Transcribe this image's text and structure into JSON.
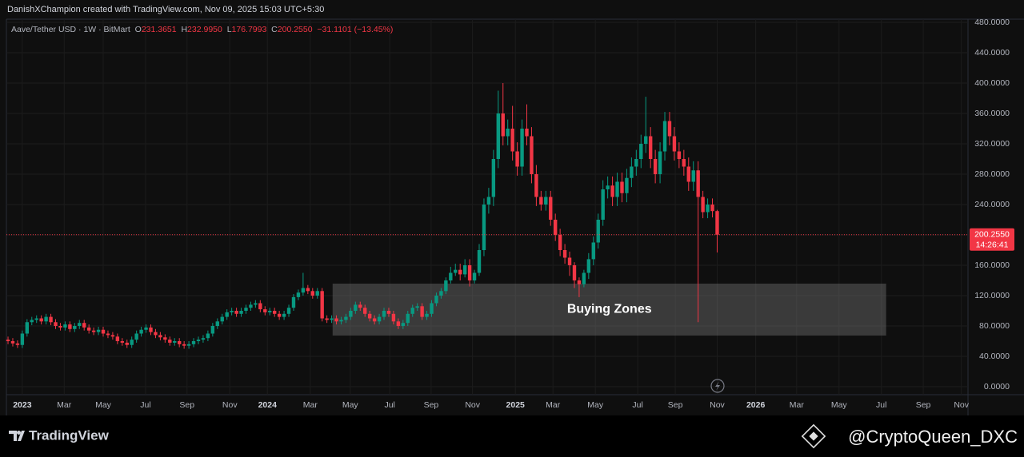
{
  "header": {
    "credit": "DanishXChampion created with TradingView.com, Nov 09, 2025 15:03 UTC+5:30"
  },
  "chart_data": {
    "type": "candlestick",
    "symbol": "Aave/Tether USD · 1W · BitMart",
    "ohlc_legend": {
      "o_label": "O",
      "o": "231.3651",
      "h_label": "H",
      "h": "232.9950",
      "l_label": "L",
      "l": "176.7993",
      "c_label": "C",
      "c": "200.2550",
      "change": "−31.1101 (−13.45%)"
    },
    "up_color": "#089981",
    "down_color": "#f23645",
    "candles": [
      [
        62,
        66,
        56,
        60
      ],
      [
        60,
        64,
        53,
        57
      ],
      [
        57,
        61,
        51,
        55
      ],
      [
        55,
        74,
        51,
        70
      ],
      [
        70,
        89,
        66,
        85
      ],
      [
        85,
        92,
        81,
        88
      ],
      [
        88,
        94,
        84,
        90
      ],
      [
        90,
        94,
        82,
        86
      ],
      [
        86,
        96,
        82,
        92
      ],
      [
        92,
        96,
        81,
        85
      ],
      [
        85,
        89,
        76,
        80
      ],
      [
        80,
        84,
        74,
        78
      ],
      [
        78,
        86,
        74,
        82
      ],
      [
        82,
        86,
        72,
        76
      ],
      [
        76,
        84,
        72,
        80
      ],
      [
        80,
        88,
        76,
        84
      ],
      [
        84,
        88,
        74,
        78
      ],
      [
        78,
        82,
        70,
        74
      ],
      [
        74,
        78,
        68,
        72
      ],
      [
        72,
        79,
        68,
        75
      ],
      [
        75,
        79,
        66,
        70
      ],
      [
        70,
        74,
        64,
        68
      ],
      [
        68,
        72,
        62,
        66
      ],
      [
        66,
        70,
        56,
        60
      ],
      [
        60,
        64,
        54,
        58
      ],
      [
        58,
        62,
        51,
        55
      ],
      [
        55,
        66,
        51,
        62
      ],
      [
        62,
        74,
        58,
        70
      ],
      [
        70,
        79,
        66,
        75
      ],
      [
        75,
        82,
        71,
        78
      ],
      [
        78,
        82,
        68,
        72
      ],
      [
        72,
        76,
        64,
        68
      ],
      [
        68,
        72,
        61,
        65
      ],
      [
        65,
        69,
        58,
        62
      ],
      [
        62,
        66,
        54,
        58
      ],
      [
        58,
        64,
        54,
        60
      ],
      [
        60,
        64,
        52,
        56
      ],
      [
        56,
        60,
        50,
        54
      ],
      [
        54,
        60,
        50,
        56
      ],
      [
        56,
        64,
        52,
        60
      ],
      [
        60,
        66,
        56,
        62
      ],
      [
        62,
        68,
        58,
        64
      ],
      [
        64,
        74,
        60,
        70
      ],
      [
        70,
        84,
        66,
        80
      ],
      [
        80,
        90,
        76,
        86
      ],
      [
        86,
        96,
        82,
        92
      ],
      [
        92,
        102,
        88,
        98
      ],
      [
        98,
        104,
        94,
        100
      ],
      [
        100,
        104,
        92,
        96
      ],
      [
        96,
        104,
        92,
        100
      ],
      [
        100,
        108,
        96,
        104
      ],
      [
        104,
        112,
        100,
        108
      ],
      [
        108,
        114,
        104,
        110
      ],
      [
        110,
        114,
        98,
        102
      ],
      [
        102,
        106,
        94,
        98
      ],
      [
        98,
        104,
        94,
        100
      ],
      [
        100,
        104,
        92,
        96
      ],
      [
        96,
        100,
        88,
        92
      ],
      [
        92,
        100,
        88,
        96
      ],
      [
        96,
        108,
        92,
        104
      ],
      [
        104,
        122,
        100,
        118
      ],
      [
        118,
        128,
        114,
        124
      ],
      [
        124,
        150,
        120,
        130
      ],
      [
        130,
        134,
        122,
        126
      ],
      [
        126,
        130,
        116,
        120
      ],
      [
        120,
        130,
        116,
        126
      ],
      [
        126,
        130,
        86,
        90
      ],
      [
        90,
        94,
        84,
        88
      ],
      [
        88,
        94,
        84,
        90
      ],
      [
        90,
        94,
        82,
        86
      ],
      [
        86,
        92,
        82,
        88
      ],
      [
        88,
        96,
        84,
        92
      ],
      [
        92,
        104,
        88,
        100
      ],
      [
        100,
        112,
        96,
        108
      ],
      [
        108,
        112,
        100,
        104
      ],
      [
        104,
        108,
        92,
        96
      ],
      [
        96,
        100,
        86,
        90
      ],
      [
        90,
        94,
        82,
        86
      ],
      [
        86,
        96,
        82,
        92
      ],
      [
        92,
        104,
        88,
        100
      ],
      [
        100,
        104,
        92,
        96
      ],
      [
        96,
        100,
        82,
        86
      ],
      [
        86,
        90,
        76,
        80
      ],
      [
        80,
        88,
        76,
        84
      ],
      [
        84,
        100,
        80,
        96
      ],
      [
        96,
        108,
        92,
        104
      ],
      [
        104,
        110,
        100,
        106
      ],
      [
        106,
        110,
        88,
        92
      ],
      [
        92,
        100,
        88,
        96
      ],
      [
        96,
        114,
        92,
        110
      ],
      [
        110,
        124,
        106,
        120
      ],
      [
        120,
        130,
        116,
        126
      ],
      [
        126,
        144,
        122,
        140
      ],
      [
        140,
        158,
        136,
        150
      ],
      [
        150,
        162,
        146,
        154
      ],
      [
        154,
        162,
        140,
        148
      ],
      [
        148,
        168,
        144,
        160
      ],
      [
        160,
        168,
        132,
        140
      ],
      [
        140,
        154,
        136,
        150
      ],
      [
        150,
        188,
        146,
        180
      ],
      [
        180,
        248,
        172,
        240
      ],
      [
        240,
        262,
        228,
        250
      ],
      [
        250,
        312,
        238,
        300
      ],
      [
        300,
        390,
        288,
        360
      ],
      [
        360,
        400,
        318,
        330
      ],
      [
        330,
        352,
        318,
        340
      ],
      [
        340,
        370,
        298,
        310
      ],
      [
        310,
        322,
        278,
        290
      ],
      [
        290,
        352,
        278,
        340
      ],
      [
        340,
        372,
        318,
        330
      ],
      [
        330,
        342,
        268,
        280
      ],
      [
        280,
        292,
        238,
        250
      ],
      [
        250,
        258,
        232,
        240
      ],
      [
        240,
        258,
        232,
        250
      ],
      [
        250,
        258,
        212,
        220
      ],
      [
        220,
        228,
        192,
        200
      ],
      [
        200,
        208,
        172,
        180
      ],
      [
        180,
        188,
        162,
        170
      ],
      [
        170,
        178,
        146,
        160
      ],
      [
        160,
        164,
        130,
        140
      ],
      [
        140,
        144,
        118,
        135
      ],
      [
        135,
        154,
        131,
        150
      ],
      [
        150,
        176,
        142,
        168
      ],
      [
        168,
        198,
        160,
        190
      ],
      [
        190,
        228,
        182,
        220
      ],
      [
        220,
        272,
        212,
        260
      ],
      [
        260,
        277,
        248,
        265
      ],
      [
        265,
        277,
        238,
        250
      ],
      [
        250,
        282,
        238,
        270
      ],
      [
        270,
        282,
        243,
        255
      ],
      [
        255,
        287,
        243,
        275
      ],
      [
        275,
        302,
        263,
        290
      ],
      [
        290,
        312,
        278,
        300
      ],
      [
        300,
        332,
        288,
        320
      ],
      [
        320,
        382,
        308,
        330
      ],
      [
        330,
        342,
        288,
        300
      ],
      [
        300,
        312,
        268,
        280
      ],
      [
        280,
        322,
        268,
        310
      ],
      [
        310,
        362,
        298,
        350
      ],
      [
        350,
        362,
        318,
        330
      ],
      [
        330,
        342,
        298,
        310
      ],
      [
        310,
        322,
        288,
        300
      ],
      [
        300,
        312,
        278,
        290
      ],
      [
        290,
        302,
        258,
        270
      ],
      [
        270,
        297,
        258,
        285
      ],
      [
        285,
        297,
        85,
        250
      ],
      [
        250,
        258,
        222,
        230
      ],
      [
        230,
        248,
        222,
        240
      ],
      [
        240,
        248,
        223,
        231.3651
      ],
      [
        231.3651,
        232.995,
        176.7993,
        200.255
      ]
    ],
    "xlim": [
      -0.34,
      201.7
    ],
    "xticks": [
      {
        "value": 3,
        "label": "2023"
      },
      {
        "value": 11.8,
        "label": "Mar"
      },
      {
        "value": 20,
        "label": "May"
      },
      {
        "value": 28.9,
        "label": "Jul"
      },
      {
        "value": 37.6,
        "label": "Sep"
      },
      {
        "value": 46.6,
        "label": "Nov"
      },
      {
        "value": 54.5,
        "label": "2024"
      },
      {
        "value": 63.5,
        "label": "Mar"
      },
      {
        "value": 71.9,
        "label": "May"
      },
      {
        "value": 80.2,
        "label": "Jul"
      },
      {
        "value": 88.9,
        "label": "Sep"
      },
      {
        "value": 97.6,
        "label": "Nov"
      },
      {
        "value": 106.6,
        "label": "2025"
      },
      {
        "value": 114.5,
        "label": "Mar"
      },
      {
        "value": 123.4,
        "label": "May"
      },
      {
        "value": 132.3,
        "label": "Jul"
      },
      {
        "value": 140.2,
        "label": "Sep"
      },
      {
        "value": 149,
        "label": "Nov"
      },
      {
        "value": 157.1,
        "label": "2026"
      },
      {
        "value": 165.7,
        "label": "Mar"
      },
      {
        "value": 174.6,
        "label": "May"
      },
      {
        "value": 183.5,
        "label": "Jul"
      },
      {
        "value": 192.3,
        "label": "Sep"
      },
      {
        "value": 200.3,
        "label": "Nov"
      }
    ],
    "ylim": [
      0,
      480
    ],
    "yticks": [
      {
        "value": 0,
        "label": "0.0000"
      },
      {
        "value": 40,
        "label": "40.0000"
      },
      {
        "value": 80,
        "label": "80.0000"
      },
      {
        "value": 120,
        "label": "120.0000"
      },
      {
        "value": 160,
        "label": "160.0000"
      },
      {
        "value": 200,
        "label": "200.0000"
      },
      {
        "value": 240,
        "label": "240.0000"
      },
      {
        "value": 280,
        "label": "280.0000"
      },
      {
        "value": 320,
        "label": "320.0000"
      },
      {
        "value": 360,
        "label": "360.0000"
      },
      {
        "value": 400,
        "label": "400.0000"
      },
      {
        "value": 440,
        "label": "440.0000"
      },
      {
        "value": 480,
        "label": "480.0000"
      }
    ],
    "grid": true,
    "last_price": {
      "value": 200.255,
      "label": "200.2550"
    },
    "countdown": "14:26:41",
    "zone": {
      "label": "Buying Zones",
      "x": [
        68.2,
        184.5
      ],
      "y": [
        67.4,
        135.8
      ]
    }
  },
  "footer": {
    "brand": "TradingView",
    "watermark": "@CryptoQueen_DXC"
  }
}
